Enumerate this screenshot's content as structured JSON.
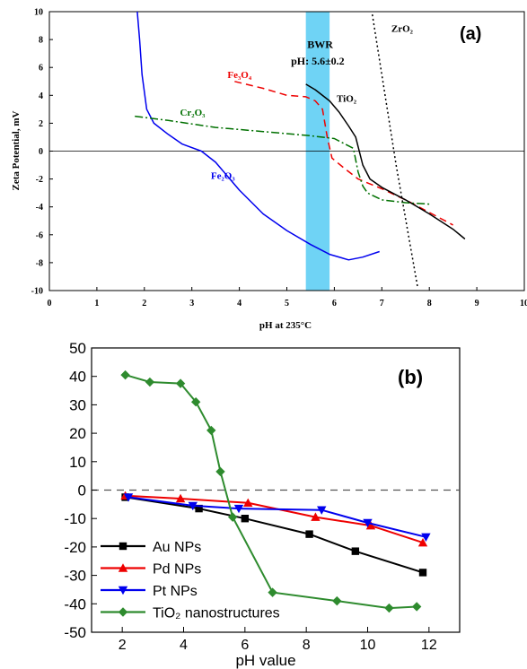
{
  "chart_data": [
    {
      "panel": "(a)",
      "type": "line",
      "title": "",
      "xlabel": "pH at 235°C",
      "ylabel": "Zeta Potential, mV",
      "xlim": [
        0,
        10
      ],
      "ylim": [
        -10,
        10
      ],
      "xticks": [
        0,
        1,
        2,
        3,
        4,
        5,
        6,
        7,
        8,
        9,
        10
      ],
      "yticks": [
        -10,
        -8,
        -6,
        -4,
        -2,
        0,
        2,
        4,
        6,
        8,
        10
      ],
      "grid": false,
      "zero_line": true,
      "band": {
        "x0": 5.4,
        "x1": 5.9,
        "color": "#6fd3f5"
      },
      "annotations": [
        {
          "text": "BWR",
          "x": 5.7,
          "y": 7.4
        },
        {
          "text": "pH: 5.6±0.2",
          "x": 5.65,
          "y": 6.2
        }
      ],
      "series": [
        {
          "name": "Fe₂O₃",
          "color": "#0000ee",
          "dash": "solid",
          "x": [
            1.85,
            1.9,
            1.95,
            2.05,
            2.2,
            2.5,
            2.8,
            3.2,
            3.5,
            4.0,
            4.5,
            5.0,
            5.5,
            5.9,
            6.3,
            6.6,
            6.95
          ],
          "y": [
            10,
            8,
            5.5,
            3.0,
            2.0,
            1.2,
            0.5,
            0.0,
            -0.8,
            -2.8,
            -4.5,
            -5.7,
            -6.7,
            -7.4,
            -7.8,
            -7.6,
            -7.2
          ]
        },
        {
          "name": "Fe₃O₄",
          "color": "#ee0000",
          "dash": "dashed",
          "x": [
            3.9,
            4.5,
            5.0,
            5.4,
            5.6,
            5.75,
            5.85,
            5.95,
            6.2,
            6.5,
            7.0,
            7.5,
            8.0,
            8.5
          ],
          "y": [
            5.0,
            4.5,
            4.0,
            3.9,
            3.6,
            3.0,
            1.0,
            -0.5,
            -1.2,
            -2.0,
            -2.7,
            -3.5,
            -4.4,
            -5.3
          ]
        },
        {
          "name": "Cr₂O₃",
          "color": "#007000",
          "dash": "dashdot",
          "x": [
            1.8,
            2.5,
            3.5,
            4.5,
            5.5,
            6.0,
            6.4,
            6.5,
            6.6,
            6.7,
            7.0,
            7.5,
            8.0
          ],
          "y": [
            2.5,
            2.2,
            1.7,
            1.4,
            1.1,
            0.9,
            0.2,
            -1.5,
            -2.5,
            -3.0,
            -3.5,
            -3.7,
            -3.8
          ]
        },
        {
          "name": "TiO₂",
          "color": "#000000",
          "dash": "solid",
          "x": [
            5.4,
            5.6,
            5.9,
            6.1,
            6.3,
            6.45,
            6.6,
            6.75,
            7.0,
            7.5,
            8.0,
            8.5,
            8.75
          ],
          "y": [
            4.8,
            4.4,
            3.6,
            2.8,
            1.8,
            1.0,
            -1.0,
            -2.0,
            -2.6,
            -3.5,
            -4.5,
            -5.6,
            -6.3
          ]
        },
        {
          "name": "ZrO₂",
          "color": "#000000",
          "dash": "dotted",
          "x": [
            6.8,
            7.3,
            7.75
          ],
          "y": [
            9.8,
            -1.0,
            -9.7
          ]
        }
      ],
      "curve_labels": [
        {
          "text": "Fe₃O₄",
          "x": 3.75,
          "y": 5.25,
          "color": "#ee0000"
        },
        {
          "text": "Cr₂O₃",
          "x": 2.75,
          "y": 2.55,
          "color": "#007000"
        },
        {
          "text": "Fe₂O₃",
          "x": 3.4,
          "y": -2.0,
          "color": "#0000ee"
        },
        {
          "text": "TiO₂",
          "x": 6.05,
          "y": 3.55,
          "color": "#000000"
        },
        {
          "text": "ZrO₂",
          "x": 7.2,
          "y": 8.55,
          "color": "#000000"
        }
      ]
    },
    {
      "panel": "(b)",
      "type": "line",
      "title": "",
      "xlabel": "pH value",
      "ylabel": "",
      "xlim": [
        1,
        13
      ],
      "ylim": [
        -50,
        50
      ],
      "xticks": [
        2,
        4,
        6,
        8,
        10,
        12
      ],
      "yticks": [
        -50,
        -40,
        -30,
        -20,
        -10,
        0,
        10,
        20,
        30,
        40,
        50
      ],
      "grid": false,
      "zero_line": true,
      "legend": "lower-left",
      "series": [
        {
          "name": "Au NPs",
          "color": "#000000",
          "marker": "square",
          "x": [
            2.1,
            4.5,
            6.0,
            8.1,
            9.6,
            11.8
          ],
          "y": [
            -2.5,
            -6.5,
            -10,
            -15.5,
            -21.5,
            -29
          ]
        },
        {
          "name": "Pd NPs",
          "color": "#ee0000",
          "marker": "triangle-up",
          "x": [
            2.1,
            3.9,
            6.1,
            8.3,
            10.1,
            11.8
          ],
          "y": [
            -2.0,
            -3.0,
            -4.5,
            -9.5,
            -12.5,
            -18.5
          ]
        },
        {
          "name": "Pt  NPs",
          "color": "#0000ee",
          "marker": "triangle-down",
          "x": [
            2.2,
            4.3,
            5.8,
            8.5,
            10.0,
            11.9
          ],
          "y": [
            -2.5,
            -5.5,
            -6.5,
            -7.0,
            -11.5,
            -16.5
          ]
        },
        {
          "name": "TiO₂ nanostructures",
          "color": "#2e8b2e",
          "marker": "diamond",
          "x": [
            2.1,
            2.9,
            3.9,
            4.4,
            4.9,
            5.2,
            5.6,
            6.9,
            9.0,
            10.7,
            11.6
          ],
          "y": [
            40.5,
            38,
            37.5,
            31,
            21,
            6.5,
            -9.5,
            -36,
            -39,
            -41.5,
            -41
          ]
        }
      ]
    }
  ]
}
